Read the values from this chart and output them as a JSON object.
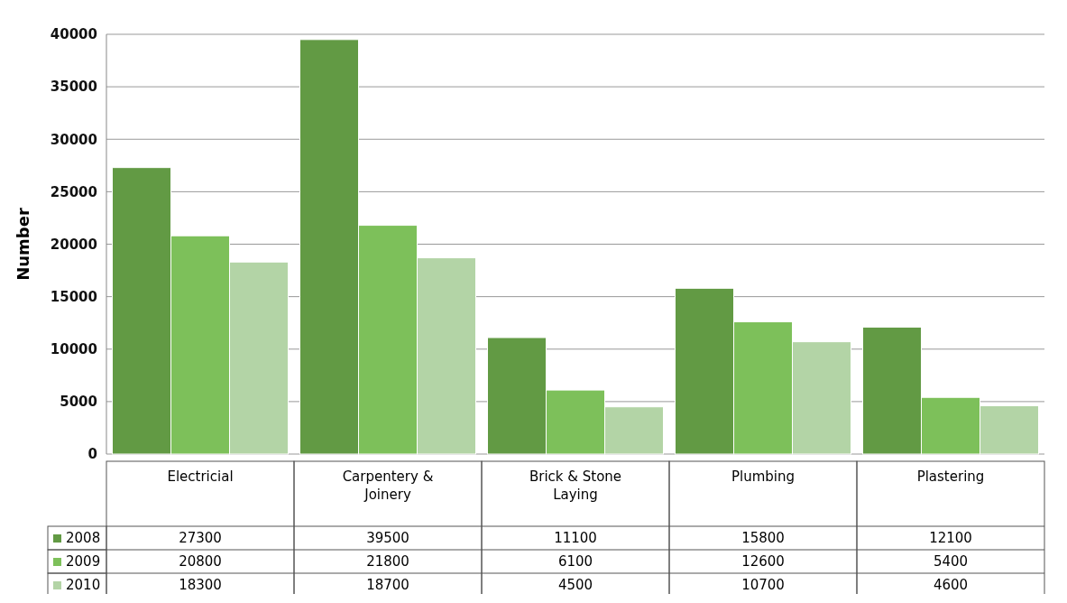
{
  "chart_data": {
    "type": "bar",
    "ylabel": "Number",
    "categories": [
      "Electricial",
      "Carpentery & Joinery",
      "Brick & Stone Laying",
      "Plumbing",
      "Plastering"
    ],
    "series": [
      {
        "name": "2008",
        "color": "#629a44",
        "values": [
          27300,
          39500,
          11100,
          15800,
          12100
        ]
      },
      {
        "name": "2009",
        "color": "#7dc05a",
        "values": [
          20800,
          21800,
          6100,
          12600,
          5400
        ]
      },
      {
        "name": "2010",
        "color": "#b3d4a6",
        "values": [
          18300,
          18700,
          4500,
          10700,
          4600
        ]
      }
    ],
    "ylim": [
      0,
      40000
    ],
    "yticks": [
      0,
      5000,
      10000,
      15000,
      20000,
      25000,
      30000,
      35000,
      40000
    ],
    "grid": "y",
    "legend": "bottom",
    "data_labels": true
  }
}
